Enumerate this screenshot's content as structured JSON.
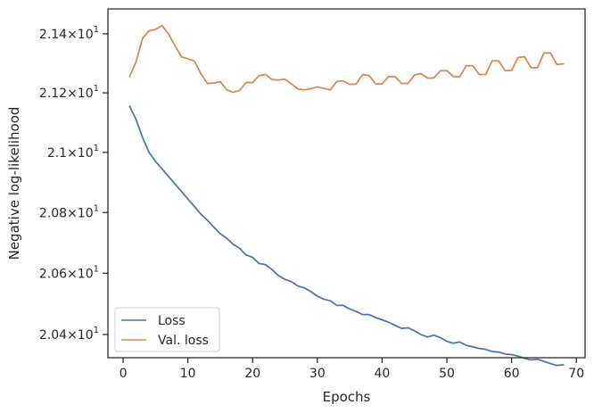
{
  "chart_data": {
    "type": "line",
    "xlabel": "Epochs",
    "ylabel": "Negative log-likelihood",
    "xlim": [
      -2.35,
      71.35
    ],
    "ylim": [
      20.325,
      21.485
    ],
    "y_scale": "log",
    "xticks": [
      0,
      10,
      20,
      30,
      40,
      50,
      60,
      70
    ],
    "yticks": [
      {
        "value": 20.4,
        "mantissa": "2.04",
        "exp": "1"
      },
      {
        "value": 20.6,
        "mantissa": "2.06",
        "exp": "1"
      },
      {
        "value": 20.8,
        "mantissa": "2.08",
        "exp": "1"
      },
      {
        "value": 21.0,
        "mantissa": "2.1",
        "exp": "1"
      },
      {
        "value": 21.2,
        "mantissa": "2.12",
        "exp": "1"
      },
      {
        "value": 21.4,
        "mantissa": "2.14",
        "exp": "1"
      }
    ],
    "grid": false,
    "legend_position": "lower-left",
    "x": [
      1,
      2,
      3,
      4,
      5,
      6,
      7,
      8,
      9,
      10,
      11,
      12,
      13,
      14,
      15,
      16,
      17,
      18,
      19,
      20,
      21,
      22,
      23,
      24,
      25,
      26,
      27,
      28,
      29,
      30,
      31,
      32,
      33,
      34,
      35,
      36,
      37,
      38,
      39,
      40,
      41,
      42,
      43,
      44,
      45,
      46,
      47,
      48,
      49,
      50,
      51,
      52,
      53,
      54,
      55,
      56,
      57,
      58,
      59,
      60,
      61,
      62,
      63,
      64,
      65,
      66,
      67,
      68
    ],
    "series": [
      {
        "name": "Loss",
        "color": "#4c72b0",
        "values": [
          21.155,
          21.11,
          21.05,
          21.0,
          20.97,
          20.945,
          20.92,
          20.895,
          20.87,
          20.845,
          20.82,
          20.795,
          20.775,
          20.752,
          20.73,
          20.715,
          20.695,
          20.682,
          20.66,
          20.652,
          20.632,
          20.628,
          20.612,
          20.592,
          20.58,
          20.572,
          20.558,
          20.552,
          20.54,
          20.525,
          20.515,
          20.51,
          20.495,
          20.495,
          20.483,
          20.475,
          20.465,
          20.465,
          20.455,
          20.448,
          20.44,
          20.43,
          20.42,
          20.422,
          20.412,
          20.4,
          20.392,
          20.398,
          20.39,
          20.378,
          20.372,
          20.376,
          20.365,
          20.36,
          20.355,
          20.352,
          20.345,
          20.343,
          20.337,
          20.335,
          20.33,
          20.323,
          20.318,
          20.32,
          20.313,
          20.306,
          20.3,
          20.302
        ]
      },
      {
        "name": "Val. loss",
        "color": "#dd8452",
        "values": [
          21.255,
          21.305,
          21.385,
          21.41,
          21.415,
          21.428,
          21.4,
          21.36,
          21.322,
          21.315,
          21.308,
          21.265,
          21.232,
          21.233,
          21.238,
          21.21,
          21.202,
          21.208,
          21.235,
          21.235,
          21.258,
          21.262,
          21.245,
          21.243,
          21.246,
          21.23,
          21.213,
          21.21,
          21.214,
          21.22,
          21.215,
          21.21,
          21.238,
          21.24,
          21.228,
          21.23,
          21.262,
          21.258,
          21.23,
          21.23,
          21.255,
          21.255,
          21.232,
          21.232,
          21.26,
          21.265,
          21.25,
          21.25,
          21.275,
          21.275,
          21.255,
          21.255,
          21.292,
          21.292,
          21.262,
          21.262,
          21.308,
          21.308,
          21.275,
          21.276,
          21.32,
          21.322,
          21.285,
          21.285,
          21.335,
          21.335,
          21.296,
          21.298
        ]
      }
    ]
  }
}
